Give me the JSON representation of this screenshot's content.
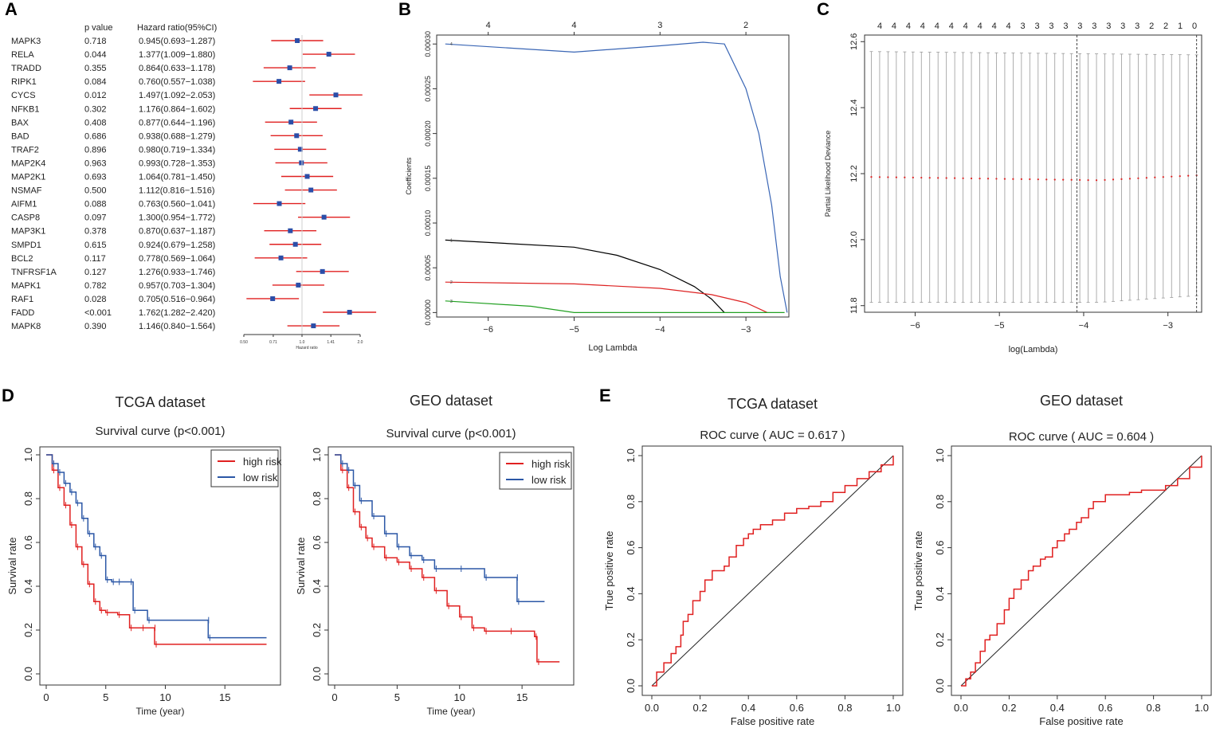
{
  "panel_labels": [
    "A",
    "B",
    "C",
    "D",
    "E"
  ],
  "chart_data": [
    {
      "panel": "A",
      "type": "forest",
      "headers": {
        "pvalue": "p value",
        "hr": "Hazard ratio(95%CI)"
      },
      "genes": [
        "MAPK3",
        "RELA",
        "TRADD",
        "RIPK1",
        "CYCS",
        "NFKB1",
        "BAX",
        "BAD",
        "TRAF2",
        "MAP2K4",
        "MAP2K1",
        "NSMAF",
        "AIFM1",
        "CASP8",
        "MAP3K1",
        "SMPD1",
        "BCL2",
        "TNFRSF1A",
        "MAPK1",
        "RAF1",
        "FADD",
        "MAPK8"
      ],
      "pvalues": [
        "0.718",
        "0.044",
        "0.355",
        "0.084",
        "0.012",
        "0.302",
        "0.408",
        "0.686",
        "0.896",
        "0.963",
        "0.693",
        "0.500",
        "0.088",
        "0.097",
        "0.378",
        "0.615",
        "0.117",
        "0.127",
        "0.782",
        "0.028",
        "<0.001",
        "0.390"
      ],
      "hr_text": [
        "0.945(0.693−1.287)",
        "1.377(1.009−1.880)",
        "0.864(0.633−1.178)",
        "0.760(0.557−1.038)",
        "1.497(1.092−2.053)",
        "1.176(0.864−1.602)",
        "0.877(0.644−1.196)",
        "0.938(0.688−1.279)",
        "0.980(0.719−1.334)",
        "0.993(0.728−1.353)",
        "1.064(0.781−1.450)",
        "1.112(0.816−1.516)",
        "0.763(0.560−1.041)",
        "1.300(0.954−1.772)",
        "0.870(0.637−1.187)",
        "0.924(0.679−1.258)",
        "0.778(0.569−1.064)",
        "1.276(0.933−1.746)",
        "0.957(0.703−1.304)",
        "0.705(0.516−0.964)",
        "1.762(1.282−2.420)",
        "1.146(0.840−1.564)"
      ],
      "hr": [
        0.945,
        1.377,
        0.864,
        0.76,
        1.497,
        1.176,
        0.877,
        0.938,
        0.98,
        0.993,
        1.064,
        1.112,
        0.763,
        1.3,
        0.87,
        0.924,
        0.778,
        1.276,
        0.957,
        0.705,
        1.762,
        1.146
      ],
      "lower": [
        0.693,
        1.009,
        0.633,
        0.557,
        1.092,
        0.864,
        0.644,
        0.688,
        0.719,
        0.728,
        0.781,
        0.816,
        0.56,
        0.954,
        0.637,
        0.679,
        0.569,
        0.933,
        0.703,
        0.516,
        1.282,
        0.84
      ],
      "upper": [
        1.287,
        1.88,
        1.178,
        1.038,
        2.053,
        1.602,
        1.196,
        1.279,
        1.334,
        1.353,
        1.45,
        1.516,
        1.041,
        1.772,
        1.187,
        1.258,
        1.064,
        1.746,
        1.304,
        0.964,
        2.42,
        1.564
      ],
      "xticks": [
        "0.50",
        "0.71",
        "1.0",
        "1.41",
        "2.0"
      ],
      "xlabel": "Hazard ratio",
      "scale": "log2"
    },
    {
      "panel": "B",
      "type": "line",
      "xlabel": "Log Lambda",
      "ylabel": "Coefficients",
      "xlim": [
        -6.6,
        -2.5
      ],
      "ylim": [
        -5e-06,
        0.00031
      ],
      "xticks": [
        "-6",
        "-5",
        "-4",
        "-3"
      ],
      "yticks": [
        "0.00000",
        "0.00005",
        "0.00010",
        "0.00015",
        "0.00020",
        "0.00025",
        "0.00030"
      ],
      "top_ticks": [
        "4",
        "4",
        "3",
        "2"
      ],
      "top_ticks_x": [
        -6,
        -5,
        -4,
        -3
      ],
      "series": [
        {
          "name": "4",
          "color": "#3a66b5",
          "x": [
            -6.5,
            -5.0,
            -4.0,
            -3.5,
            -3.25,
            -3.0,
            -2.85,
            -2.7,
            -2.6,
            -2.52
          ],
          "y": [
            0.0003,
            0.000291,
            0.000298,
            0.000302,
            0.0003,
            0.00025,
            0.0002,
            0.00012,
            4e-05,
            0.0
          ]
        },
        {
          "name": "1",
          "color": "#000000",
          "x": [
            -6.5,
            -5.0,
            -4.5,
            -4.0,
            -3.6,
            -3.4,
            -3.25
          ],
          "y": [
            8.1e-05,
            7.3e-05,
            6.4e-05,
            4.8e-05,
            2.9e-05,
            1.5e-05,
            0.0
          ]
        },
        {
          "name": "2",
          "color": "#dd2222",
          "x": [
            -6.5,
            -5.0,
            -4.0,
            -3.4,
            -3.0,
            -2.75
          ],
          "y": [
            3.4e-05,
            3.2e-05,
            2.7e-05,
            2e-05,
            1.1e-05,
            0.0
          ]
        },
        {
          "name": "3",
          "color": "#22a022",
          "x": [
            -6.5,
            -5.5,
            -5.0,
            -4.5,
            -2.55
          ],
          "y": [
            1.3e-05,
            7e-06,
            0.0,
            0.0,
            0.0
          ]
        }
      ]
    },
    {
      "panel": "C",
      "type": "scatter",
      "xlabel": "log(Lambda)",
      "ylabel": "Partial Likelihood Deviance",
      "xlim": [
        -6.6,
        -2.6
      ],
      "ylim": [
        11.78,
        12.62
      ],
      "xticks": [
        "-6",
        "-5",
        "-4",
        "-3"
      ],
      "yticks": [
        "11.8",
        "12.0",
        "12.2",
        "12.4",
        "12.6"
      ],
      "top_ticks": [
        "4",
        "4",
        "4",
        "4",
        "4",
        "4",
        "4",
        "4",
        "4",
        "4",
        "3",
        "3",
        "3",
        "3",
        "3",
        "3",
        "3",
        "3",
        "3",
        "2",
        "2",
        "1",
        "0"
      ],
      "n_points": 40,
      "x_start": -6.52,
      "x_end": -2.66,
      "mean_start": 12.19,
      "mean_min": 12.18,
      "mean_end": 12.195,
      "upper_start": 12.57,
      "upper_end": 12.56,
      "lower_start": 11.81,
      "lower_end": 11.83,
      "vlines": [
        -4.08,
        -2.66
      ],
      "point_color": "#dd2222"
    },
    {
      "panel": "D1",
      "type": "survival",
      "title": "TCGA dataset",
      "subtitle": "Survival curve (p<0.001)",
      "xlabel": "Time (year)",
      "ylabel": "Survival rate",
      "xlim": [
        0,
        19
      ],
      "ylim": [
        0,
        1.0
      ],
      "xticks": [
        "0",
        "5",
        "10",
        "15"
      ],
      "yticks": [
        "0.0",
        "0.2",
        "0.4",
        "0.6",
        "0.8",
        "1.0"
      ],
      "legend": [
        "high risk",
        "low risk"
      ],
      "series": [
        {
          "name": "high risk",
          "color": "#e02020",
          "t": [
            0,
            0.5,
            1,
            1.5,
            2,
            2.5,
            3,
            3.5,
            4,
            4.5,
            5,
            6,
            7,
            8,
            9,
            9.1,
            18.5
          ],
          "s": [
            1.0,
            0.93,
            0.85,
            0.77,
            0.68,
            0.58,
            0.5,
            0.41,
            0.33,
            0.29,
            0.28,
            0.27,
            0.21,
            0.21,
            0.21,
            0.135,
            0.135
          ]
        },
        {
          "name": "low risk",
          "color": "#2b57a6",
          "t": [
            0,
            0.5,
            1,
            1.5,
            2,
            2.5,
            3,
            3.5,
            4,
            4.5,
            5,
            5.5,
            6,
            7,
            7.3,
            8.5,
            13.5,
            13.6,
            18.5
          ],
          "s": [
            1.0,
            0.96,
            0.92,
            0.87,
            0.83,
            0.78,
            0.71,
            0.64,
            0.58,
            0.54,
            0.43,
            0.42,
            0.42,
            0.42,
            0.29,
            0.245,
            0.245,
            0.165,
            0.165
          ]
        }
      ]
    },
    {
      "panel": "D2",
      "type": "survival",
      "title": "GEO dataset",
      "subtitle": "Survival curve (p<0.001)",
      "xlabel": "Time (year)",
      "ylabel": "Survival rate",
      "xlim": [
        0,
        18.5
      ],
      "ylim": [
        0,
        1.0
      ],
      "xticks": [
        "0",
        "5",
        "10",
        "15"
      ],
      "yticks": [
        "0.0",
        "0.2",
        "0.4",
        "0.6",
        "0.8",
        "1.0"
      ],
      "legend": [
        "high risk",
        "low risk"
      ],
      "series": [
        {
          "name": "high risk",
          "color": "#e02020",
          "t": [
            0,
            0.5,
            1,
            1.5,
            2,
            2.5,
            3,
            4,
            5,
            6,
            7,
            8,
            9,
            10,
            11,
            12,
            14,
            16,
            16.2,
            18
          ],
          "s": [
            1.0,
            0.93,
            0.85,
            0.74,
            0.67,
            0.62,
            0.58,
            0.53,
            0.51,
            0.48,
            0.44,
            0.38,
            0.31,
            0.26,
            0.21,
            0.195,
            0.195,
            0.17,
            0.055,
            0.055
          ]
        },
        {
          "name": "low risk",
          "color": "#2b57a6",
          "t": [
            0,
            0.5,
            1,
            1.5,
            2,
            3,
            4,
            5,
            6,
            7,
            8,
            10,
            12,
            14.5,
            14.6,
            16.8
          ],
          "s": [
            1.0,
            0.96,
            0.93,
            0.86,
            0.79,
            0.72,
            0.64,
            0.58,
            0.54,
            0.52,
            0.48,
            0.48,
            0.44,
            0.44,
            0.33,
            0.33
          ]
        }
      ]
    },
    {
      "panel": "E1",
      "type": "roc",
      "title": "TCGA dataset",
      "subtitle": "ROC curve ( AUC =  0.617 )",
      "auc": 0.617,
      "xlabel": "False positive rate",
      "ylabel": "True positive rate",
      "xticks": [
        "0.0",
        "0.2",
        "0.4",
        "0.6",
        "0.8",
        "1.0"
      ],
      "yticks": [
        "0.0",
        "0.2",
        "0.4",
        "0.6",
        "0.8",
        "1.0"
      ],
      "fpr": [
        0,
        0.02,
        0.05,
        0.08,
        0.1,
        0.12,
        0.13,
        0.15,
        0.17,
        0.2,
        0.22,
        0.25,
        0.28,
        0.3,
        0.32,
        0.35,
        0.38,
        0.4,
        0.42,
        0.45,
        0.5,
        0.55,
        0.6,
        0.65,
        0.7,
        0.75,
        0.8,
        0.85,
        0.9,
        0.95,
        1.0
      ],
      "tpr": [
        0,
        0.06,
        0.1,
        0.14,
        0.17,
        0.22,
        0.28,
        0.31,
        0.37,
        0.41,
        0.46,
        0.5,
        0.5,
        0.52,
        0.56,
        0.61,
        0.64,
        0.66,
        0.68,
        0.7,
        0.72,
        0.75,
        0.77,
        0.78,
        0.8,
        0.84,
        0.87,
        0.9,
        0.93,
        0.96,
        1.0
      ],
      "color": "#e02020"
    },
    {
      "panel": "E2",
      "type": "roc",
      "title": "GEO dataset",
      "subtitle": "ROC curve ( AUC =  0.604 )",
      "auc": 0.604,
      "xlabel": "False positive rate",
      "ylabel": "True positive rate",
      "xticks": [
        "0.0",
        "0.2",
        "0.4",
        "0.6",
        "0.8",
        "1.0"
      ],
      "yticks": [
        "0.0",
        "0.2",
        "0.4",
        "0.6",
        "0.8",
        "1.0"
      ],
      "fpr": [
        0,
        0.02,
        0.04,
        0.06,
        0.08,
        0.1,
        0.12,
        0.15,
        0.18,
        0.2,
        0.22,
        0.25,
        0.28,
        0.3,
        0.33,
        0.35,
        0.38,
        0.4,
        0.43,
        0.45,
        0.48,
        0.5,
        0.53,
        0.55,
        0.6,
        0.65,
        0.7,
        0.75,
        0.8,
        0.85,
        0.9,
        0.95,
        1.0
      ],
      "tpr": [
        0,
        0.03,
        0.06,
        0.1,
        0.15,
        0.2,
        0.22,
        0.27,
        0.33,
        0.38,
        0.42,
        0.46,
        0.5,
        0.52,
        0.55,
        0.56,
        0.6,
        0.63,
        0.66,
        0.68,
        0.71,
        0.73,
        0.77,
        0.8,
        0.83,
        0.83,
        0.84,
        0.85,
        0.85,
        0.87,
        0.9,
        0.95,
        1.0
      ],
      "color": "#e02020"
    }
  ]
}
